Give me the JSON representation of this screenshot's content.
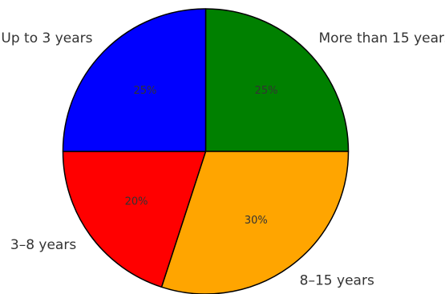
{
  "chart_data": {
    "type": "pie",
    "title": "",
    "start_angle_deg": 90,
    "direction": "clockwise",
    "slices": [
      {
        "label": "More than 15 years",
        "value": 25,
        "pct_label": "25%",
        "color": "#008000"
      },
      {
        "label": "8–15 years",
        "value": 30,
        "pct_label": "30%",
        "color": "#FFA500"
      },
      {
        "label": "3–8 years",
        "value": 20,
        "pct_label": "20%",
        "color": "#FF0000"
      },
      {
        "label": "Up to 3 years",
        "value": 25,
        "pct_label": "25%",
        "color": "#0000FF"
      }
    ],
    "edge_color": "#000000",
    "legend": "none"
  }
}
